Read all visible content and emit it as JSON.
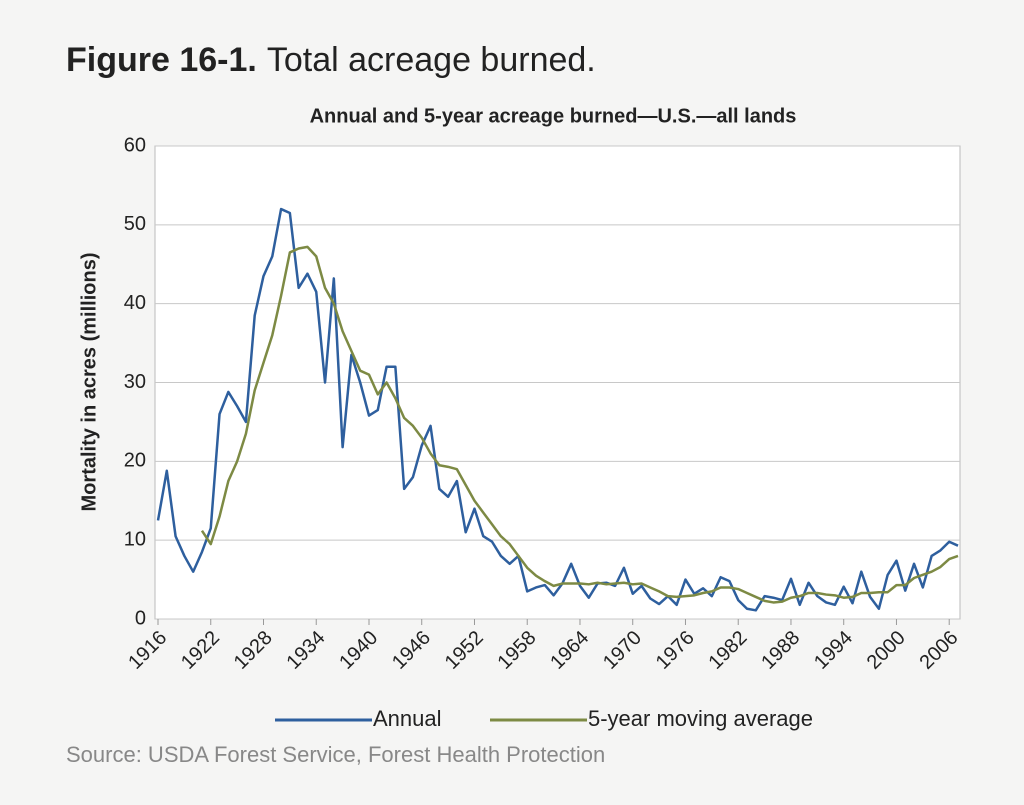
{
  "chart_data": {
    "type": "line",
    "figure_label": "Figure 16-1.",
    "title": "Total acreage burned.",
    "subtitle": "Annual and 5-year acreage burned—U.S.—all lands",
    "ylabel": "Mortality in acres (millions)",
    "source": "Source: USDA Forest Service, Forest Health Protection",
    "x": [
      1916,
      1917,
      1918,
      1919,
      1920,
      1921,
      1922,
      1923,
      1924,
      1925,
      1926,
      1927,
      1928,
      1929,
      1930,
      1931,
      1932,
      1933,
      1934,
      1935,
      1936,
      1937,
      1938,
      1939,
      1940,
      1941,
      1942,
      1943,
      1944,
      1945,
      1946,
      1947,
      1948,
      1949,
      1950,
      1951,
      1952,
      1953,
      1954,
      1955,
      1956,
      1957,
      1958,
      1959,
      1960,
      1961,
      1962,
      1963,
      1964,
      1965,
      1966,
      1967,
      1968,
      1969,
      1970,
      1971,
      1972,
      1973,
      1974,
      1975,
      1976,
      1977,
      1978,
      1979,
      1980,
      1981,
      1982,
      1983,
      1984,
      1985,
      1986,
      1987,
      1988,
      1989,
      1990,
      1991,
      1992,
      1993,
      1994,
      1995,
      1996,
      1997,
      1998,
      1999,
      2000,
      2001,
      2002,
      2003,
      2004,
      2005,
      2006,
      2007
    ],
    "series": [
      {
        "name": "Annual",
        "color": "#2e5f9e",
        "values": [
          12.5,
          18.8,
          10.5,
          8,
          6,
          8.5,
          11.5,
          26,
          28.8,
          27,
          25,
          38.5,
          43.5,
          46,
          52,
          51.5,
          42,
          43.8,
          41.5,
          30,
          43.2,
          21.8,
          33.5,
          30,
          25.8,
          26.5,
          32,
          32,
          16.5,
          18,
          22,
          24.5,
          16.5,
          15.5,
          17.5,
          11,
          14,
          10.5,
          9.8,
          8,
          7,
          8,
          3.5,
          4,
          4.3,
          3,
          4.5,
          7,
          4.2,
          2.7,
          4.5,
          4.6,
          4.2,
          6.5,
          3.2,
          4.2,
          2.6,
          1.9,
          2.9,
          1.8,
          5,
          3.2,
          3.9,
          2.9,
          5.3,
          4.8,
          2.4,
          1.3,
          1.1,
          2.9,
          2.7,
          2.4,
          5.1,
          1.8,
          4.6,
          2.9,
          2.1,
          1.8,
          4.1,
          2,
          6,
          2.8,
          1.3,
          5.6,
          7.4,
          3.6,
          7,
          4,
          8,
          8.7,
          9.8,
          9.3
        ]
      },
      {
        "name": "5-year moving average",
        "color": "#7d8a44",
        "values": [
          null,
          null,
          null,
          null,
          null,
          11.2,
          9.5,
          13,
          17.5,
          20,
          23.5,
          29,
          32.5,
          36,
          41,
          46.5,
          47,
          47.2,
          46,
          42,
          40,
          36.5,
          34,
          31.5,
          31,
          28.5,
          30,
          28,
          25.5,
          24.5,
          23,
          21,
          19.5,
          19.3,
          19,
          17,
          15,
          13.5,
          12,
          10.5,
          9.5,
          8,
          6.5,
          5.5,
          4.8,
          4.2,
          4.5,
          4.5,
          4.5,
          4.4,
          4.6,
          4.4,
          4.5,
          4.6,
          4.4,
          4.5,
          4,
          3.5,
          2.9,
          2.8,
          2.9,
          3,
          3.3,
          3.5,
          4,
          4,
          3.8,
          3.3,
          2.8,
          2.3,
          2.1,
          2.2,
          2.7,
          2.9,
          3.3,
          3.3,
          3.1,
          3,
          2.7,
          2.8,
          3.3,
          3.3,
          3.4,
          3.4,
          4.3,
          4.3,
          5.2,
          5.6,
          6,
          6.6,
          7.6,
          8
        ]
      }
    ],
    "xlim": [
      1916,
      2007
    ],
    "xticks": [
      1916,
      1922,
      1928,
      1934,
      1940,
      1946,
      1952,
      1958,
      1964,
      1970,
      1976,
      1982,
      1988,
      1994,
      2000,
      2006
    ],
    "ylim": [
      0,
      60
    ],
    "yticks": [
      0,
      10,
      20,
      30,
      40,
      50,
      60
    ],
    "grid": true
  }
}
